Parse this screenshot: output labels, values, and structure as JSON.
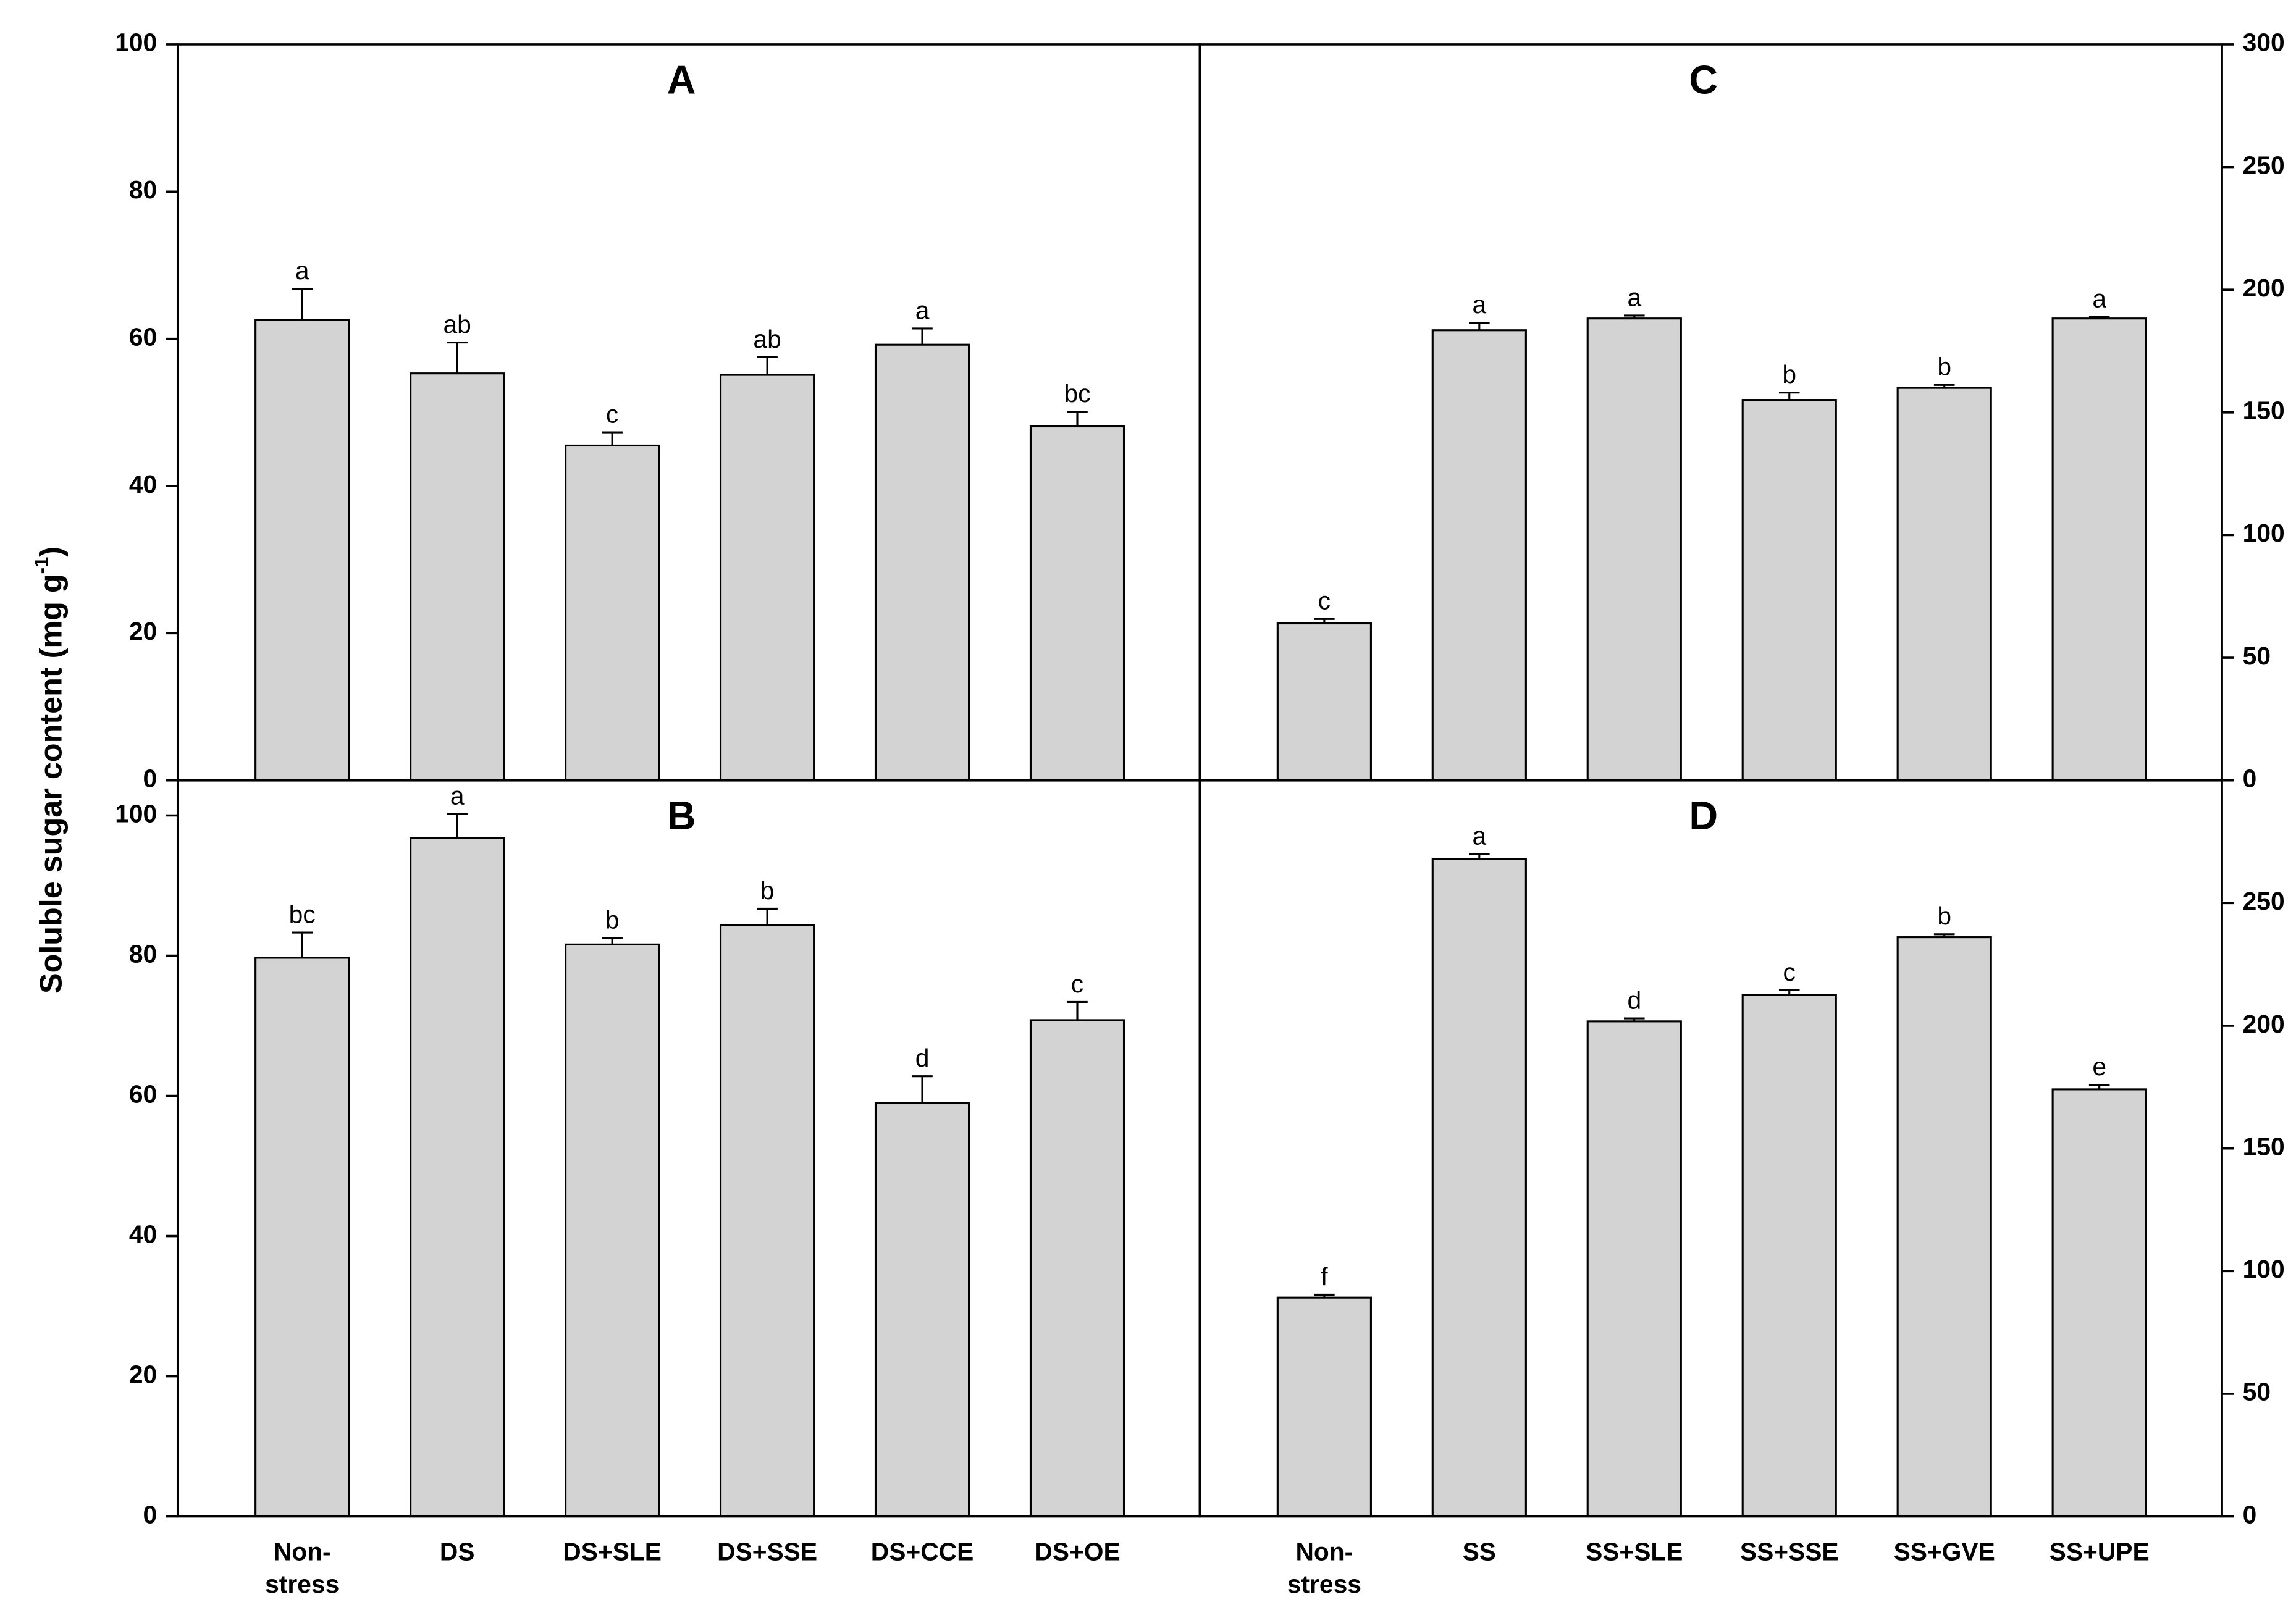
{
  "ylabel": "Soluble sugar content (mg g",
  "ylabel_sup": "-1",
  "ylabel_end": ")",
  "chart_data": [
    {
      "type": "bar",
      "title": "A",
      "color": "#d3d3d3",
      "values": [
        62.6,
        55.3,
        45.5,
        55.1,
        59.2,
        48.1
      ],
      "errors": [
        4.2,
        4.2,
        1.8,
        2.4,
        2.2,
        2.0
      ],
      "significance": [
        "a",
        "ab",
        "c",
        "ab",
        "a",
        "bc"
      ],
      "ylim": [
        0,
        100
      ],
      "yticks": [
        0,
        20,
        40,
        60,
        80,
        100
      ]
    },
    {
      "type": "bar",
      "title": "B",
      "color": "#d3d3d3",
      "categories": [
        "Non-\nstress",
        "DS",
        "DS+SLE",
        "DS+SSE",
        "DS+CCE",
        "DS+OE"
      ],
      "values": [
        79.7,
        96.8,
        81.6,
        84.4,
        59.0,
        70.8
      ],
      "errors": [
        3.6,
        3.4,
        0.9,
        2.3,
        3.8,
        2.6
      ],
      "significance": [
        "bc",
        "a",
        "b",
        "b",
        "d",
        "c"
      ],
      "ylim": [
        0,
        105
      ],
      "yticks": [
        0,
        20,
        40,
        60,
        80,
        100
      ]
    },
    {
      "type": "bar",
      "title": "C",
      "color": "#d3d3d3",
      "values": [
        64,
        183.5,
        188.3,
        155.1,
        160,
        188.3
      ],
      "errors": [
        1.8,
        3,
        1.2,
        3,
        1.2,
        0.6
      ],
      "significance": [
        "c",
        "a",
        "a",
        "b",
        "b",
        "a"
      ],
      "y2lim": [
        0,
        300
      ],
      "y2ticks": [
        0,
        50,
        100,
        150,
        200,
        250,
        300
      ]
    },
    {
      "type": "bar",
      "title": "D",
      "color": "#d3d3d3",
      "categories": [
        "Non-\nstress",
        "SS",
        "SS+SLE",
        "SS+SSE",
        "SS+GVE",
        "SS+UPE"
      ],
      "values": [
        89.2,
        268,
        201.8,
        212.7,
        236.1,
        174.1
      ],
      "errors": [
        1.2,
        2,
        1.2,
        1.8,
        1.2,
        1.8
      ],
      "significance": [
        "f",
        "a",
        "d",
        "c",
        "b",
        "e"
      ],
      "y2lim": [
        0,
        300
      ],
      "y2ticks": [
        0,
        50,
        100,
        150,
        200,
        250
      ]
    }
  ]
}
